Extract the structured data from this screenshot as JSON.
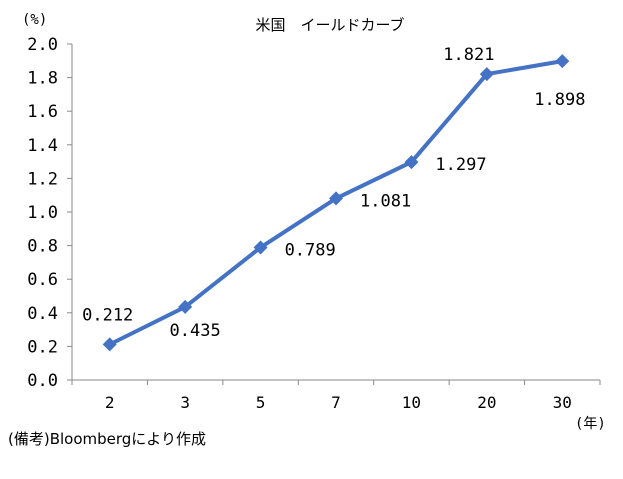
{
  "chart_data": {
    "type": "line",
    "title": "米国　イールドカーブ",
    "y_unit_label": "(%)",
    "x_unit_label": "(年)",
    "categories": [
      "2",
      "3",
      "5",
      "7",
      "10",
      "20",
      "30"
    ],
    "series": [
      {
        "values": [
          0.212,
          0.435,
          0.789,
          1.081,
          1.297,
          1.821,
          1.898
        ],
        "labels": [
          "0.212",
          "0.435",
          "0.789",
          "1.081",
          "1.297",
          "1.821",
          "1.898"
        ]
      }
    ],
    "ylim": [
      0,
      2.0
    ],
    "yticks": [
      "0.0",
      "0.2",
      "0.4",
      "0.6",
      "0.8",
      "1.0",
      "1.2",
      "1.4",
      "1.6",
      "1.8",
      "2.0"
    ],
    "grid": false,
    "legend": "none",
    "line_color": "#4472C4",
    "source_note": "(備考)Bloombergにより作成"
  }
}
